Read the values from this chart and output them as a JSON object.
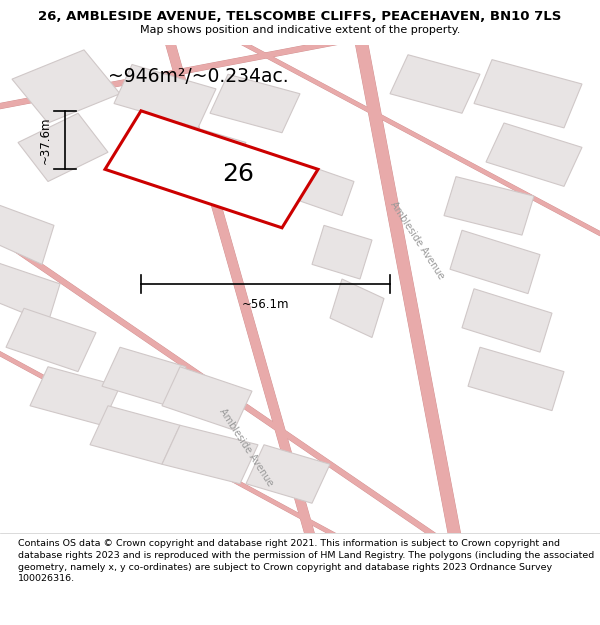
{
  "title_line1": "26, AMBLESIDE AVENUE, TELSCOMBE CLIFFS, PEACEHAVEN, BN10 7LS",
  "title_line2": "Map shows position and indicative extent of the property.",
  "area_text": "~946m²/~0.234ac.",
  "number_label": "26",
  "dim_width": "~56.1m",
  "dim_height": "~37.6m",
  "street_label1": "Ambleside Avenue",
  "street_label2": "Ambleside Avenue",
  "footer_text": "Contains OS data © Crown copyright and database right 2021. This information is subject to Crown copyright and database rights 2023 and is reproduced with the permission of HM Land Registry. The polygons (including the associated geometry, namely x, y co-ordinates) are subject to Crown copyright and database rights 2023 Ordnance Survey 100026316.",
  "bg_color": "#f9f6f6",
  "road_color": "#e8aaaa",
  "road_outline": "#e0a0a0",
  "building_fill": "#e8e4e4",
  "building_edge": "#d0c8c8",
  "header_bg": "#ffffff",
  "footer_bg": "#ffffff",
  "poly_color": "#cc0000",
  "poly_fill": "#ffffff"
}
